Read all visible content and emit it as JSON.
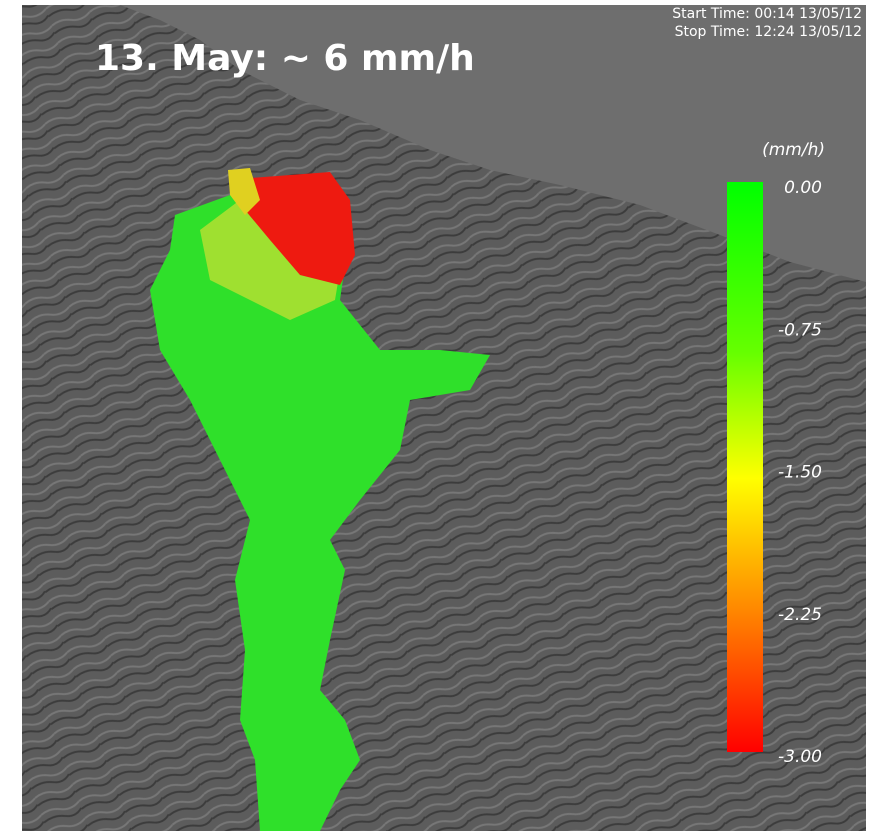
{
  "title": "13. May: ~ 6 mm/h",
  "start_time": "Start Time: 00:14 13/05/12",
  "stop_time": "Stop Time: 12:24 13/05/12",
  "colorbar": {
    "unit": "(mm/h)",
    "ticks": [
      {
        "value": 0,
        "label": "0.00"
      },
      {
        "value": -0.75,
        "label": "-0.75"
      },
      {
        "value": -1.5,
        "label": "-1.50"
      },
      {
        "value": -2.25,
        "label": "-2.25"
      },
      {
        "value": -3,
        "label": "-3.00"
      }
    ]
  }
}
